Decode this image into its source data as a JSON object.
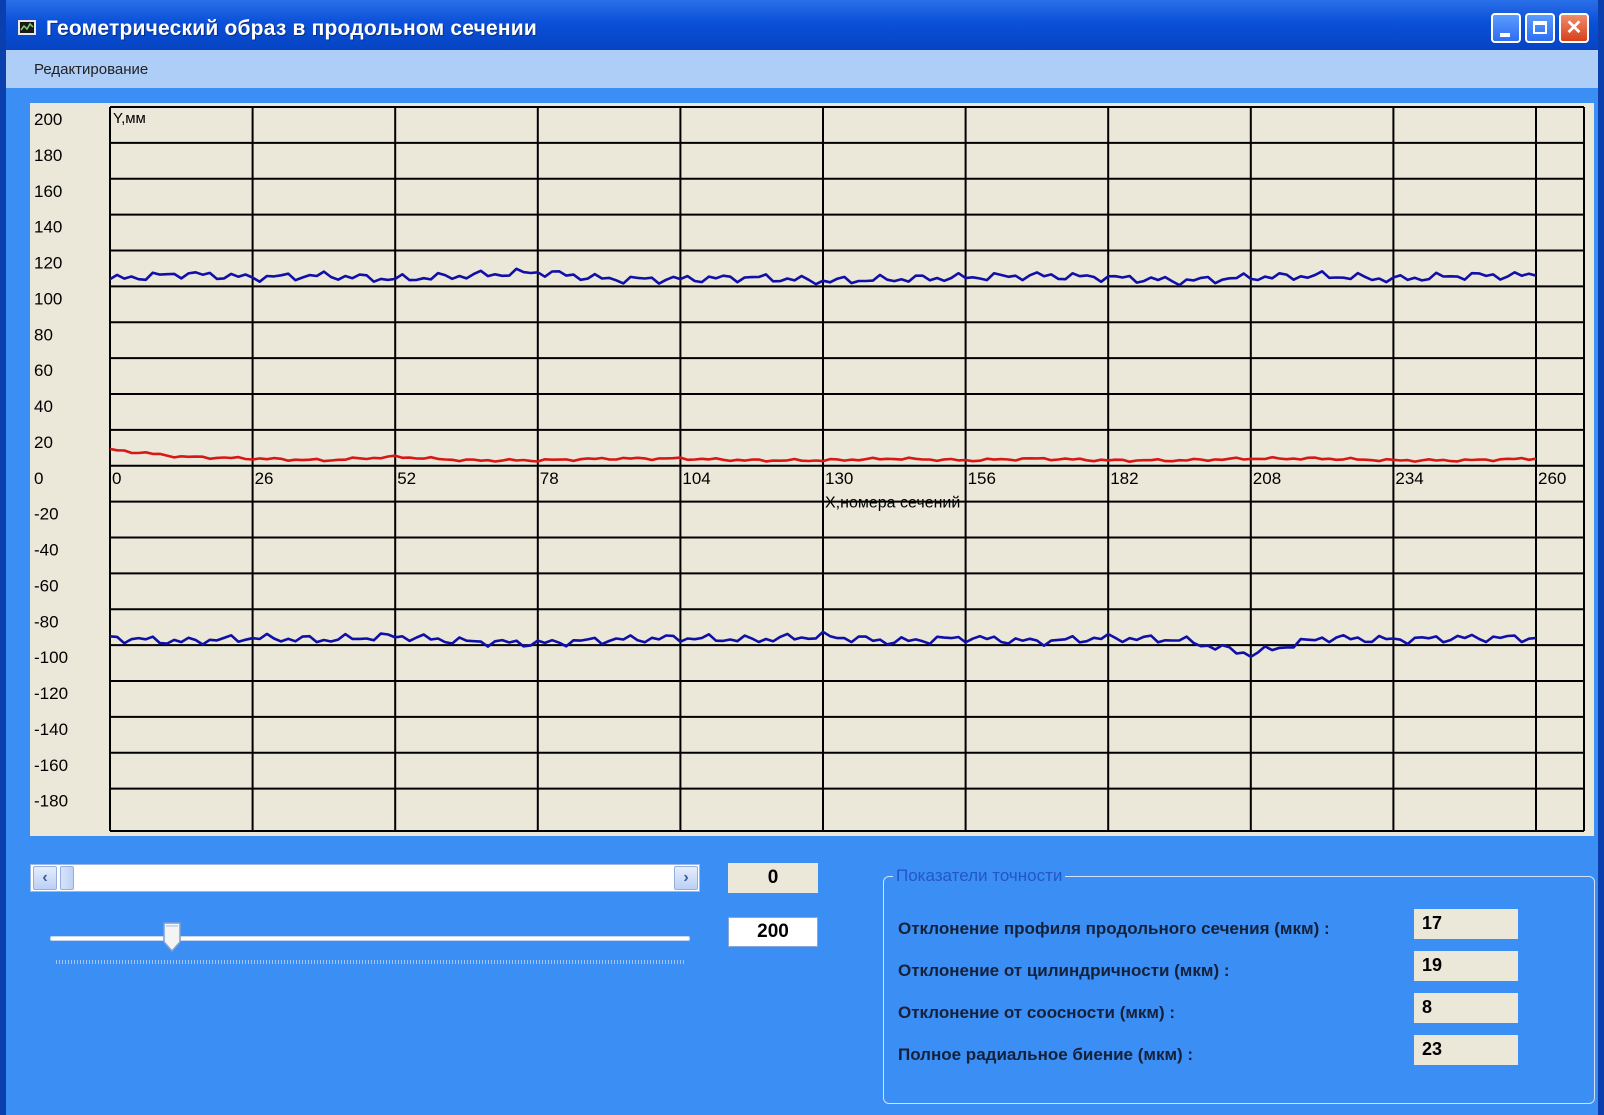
{
  "window": {
    "title": "Геометрический образ в продольном сечении",
    "icon": "chart-window-icon"
  },
  "menubar": {
    "items": [
      {
        "label": "Редактирование"
      }
    ]
  },
  "chart_data": {
    "type": "line",
    "ylabel": "Y,мм",
    "xlabel": "X,номера сечений",
    "ylim": [
      -200,
      200
    ],
    "xlim": [
      0,
      260
    ],
    "yticks": [
      "200",
      "180",
      "160",
      "140",
      "120",
      "100",
      "80",
      "60",
      "40",
      "20",
      "0",
      "-20",
      "-40",
      "-60",
      "-80",
      "-100",
      "-120",
      "-140",
      "-160",
      "-180"
    ],
    "xticks": [
      "0",
      "26",
      "52",
      "78",
      "104",
      "130",
      "156",
      "182",
      "208",
      "234",
      "260"
    ],
    "grid": true,
    "series": [
      {
        "color": "#1010a8",
        "x": [
          0,
          13,
          26,
          39,
          52,
          65,
          78,
          91,
          104,
          117,
          130,
          143,
          156,
          169,
          182,
          195,
          208,
          221,
          234,
          247,
          260
        ],
        "values": [
          104,
          107,
          105,
          106,
          104,
          106,
          108,
          104,
          104,
          105,
          103,
          104,
          105,
          106,
          105,
          103,
          105,
          106,
          104,
          106,
          106
        ]
      },
      {
        "color": "#d81818",
        "x": [
          0,
          13,
          26,
          39,
          52,
          65,
          78,
          91,
          104,
          117,
          130,
          143,
          156,
          169,
          182,
          195,
          208,
          221,
          234,
          247,
          260
        ],
        "values": [
          9,
          5,
          4,
          3,
          5,
          3,
          3,
          4,
          4,
          3,
          3,
          4,
          3,
          4,
          3,
          3,
          4,
          4,
          3,
          3,
          4
        ]
      },
      {
        "color": "#1010a8",
        "x": [
          0,
          13,
          26,
          39,
          52,
          65,
          78,
          91,
          104,
          117,
          130,
          143,
          156,
          169,
          182,
          195,
          208,
          221,
          234,
          247,
          260
        ],
        "values": [
          -96,
          -98,
          -96,
          -97,
          -95,
          -98,
          -99,
          -97,
          -96,
          -97,
          -95,
          -98,
          -96,
          -98,
          -96,
          -97,
          -105,
          -96,
          -97,
          -96,
          -96
        ]
      }
    ]
  },
  "navigation": {
    "scroll_value": "0",
    "range_value": "200",
    "slider_fraction": 0.19,
    "scroll_fraction": 0
  },
  "accuracy": {
    "group_title": "Показатели точности",
    "rows": [
      {
        "label": "Отклонение профиля продольного сечения (мкм) :",
        "value": "17"
      },
      {
        "label": "Отклонение от цилиндричности (мкм) :",
        "value": "19"
      },
      {
        "label": "Отклонение от соосности (мкм) :",
        "value": "8"
      },
      {
        "label": "Полное радиальное биение (мкм) :",
        "value": "23"
      }
    ]
  }
}
